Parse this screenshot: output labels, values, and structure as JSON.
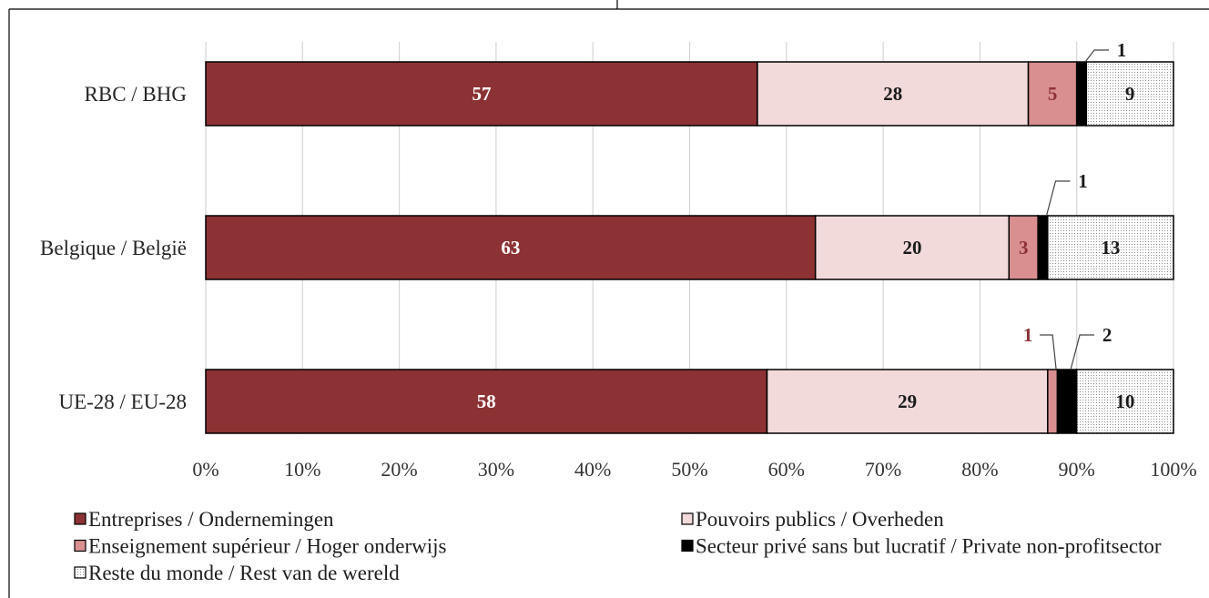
{
  "chart_data": {
    "type": "bar",
    "orientation": "horizontal",
    "stacked": true,
    "categories": [
      "RBC / BHG",
      "Belgique / België",
      "UE-28 / EU-28"
    ],
    "series": [
      {
        "name": "Entreprises / Ondernemingen",
        "values": [
          57,
          63,
          58
        ],
        "color": "#8c3234",
        "label_color": "#ffffff"
      },
      {
        "name": "Pouvoirs publics / Overheden",
        "values": [
          28,
          20,
          29
        ],
        "color": "#f3dada",
        "label_color": "#1a1a1a"
      },
      {
        "name": "Enseignement supérieur / Hoger onderwijs",
        "values": [
          5,
          3,
          1
        ],
        "color": "#d98e90",
        "label_color": "#8c3234"
      },
      {
        "name": "Secteur privé sans but lucratif / Private non-profitsector",
        "values": [
          1,
          1,
          2
        ],
        "color": "#000000",
        "label_color": "#1a1a1a"
      },
      {
        "name": "Reste du monde / Rest van de wereld",
        "values": [
          9,
          13,
          10
        ],
        "color": "#ffffff",
        "pattern": "dotted",
        "label_color": "#1a1a1a"
      }
    ],
    "xlim": [
      0,
      100
    ],
    "xticks": [
      "0%",
      "10%",
      "20%",
      "30%",
      "40%",
      "50%",
      "60%",
      "70%",
      "80%",
      "90%",
      "100%"
    ],
    "grid": true,
    "legend_position": "bottom"
  }
}
